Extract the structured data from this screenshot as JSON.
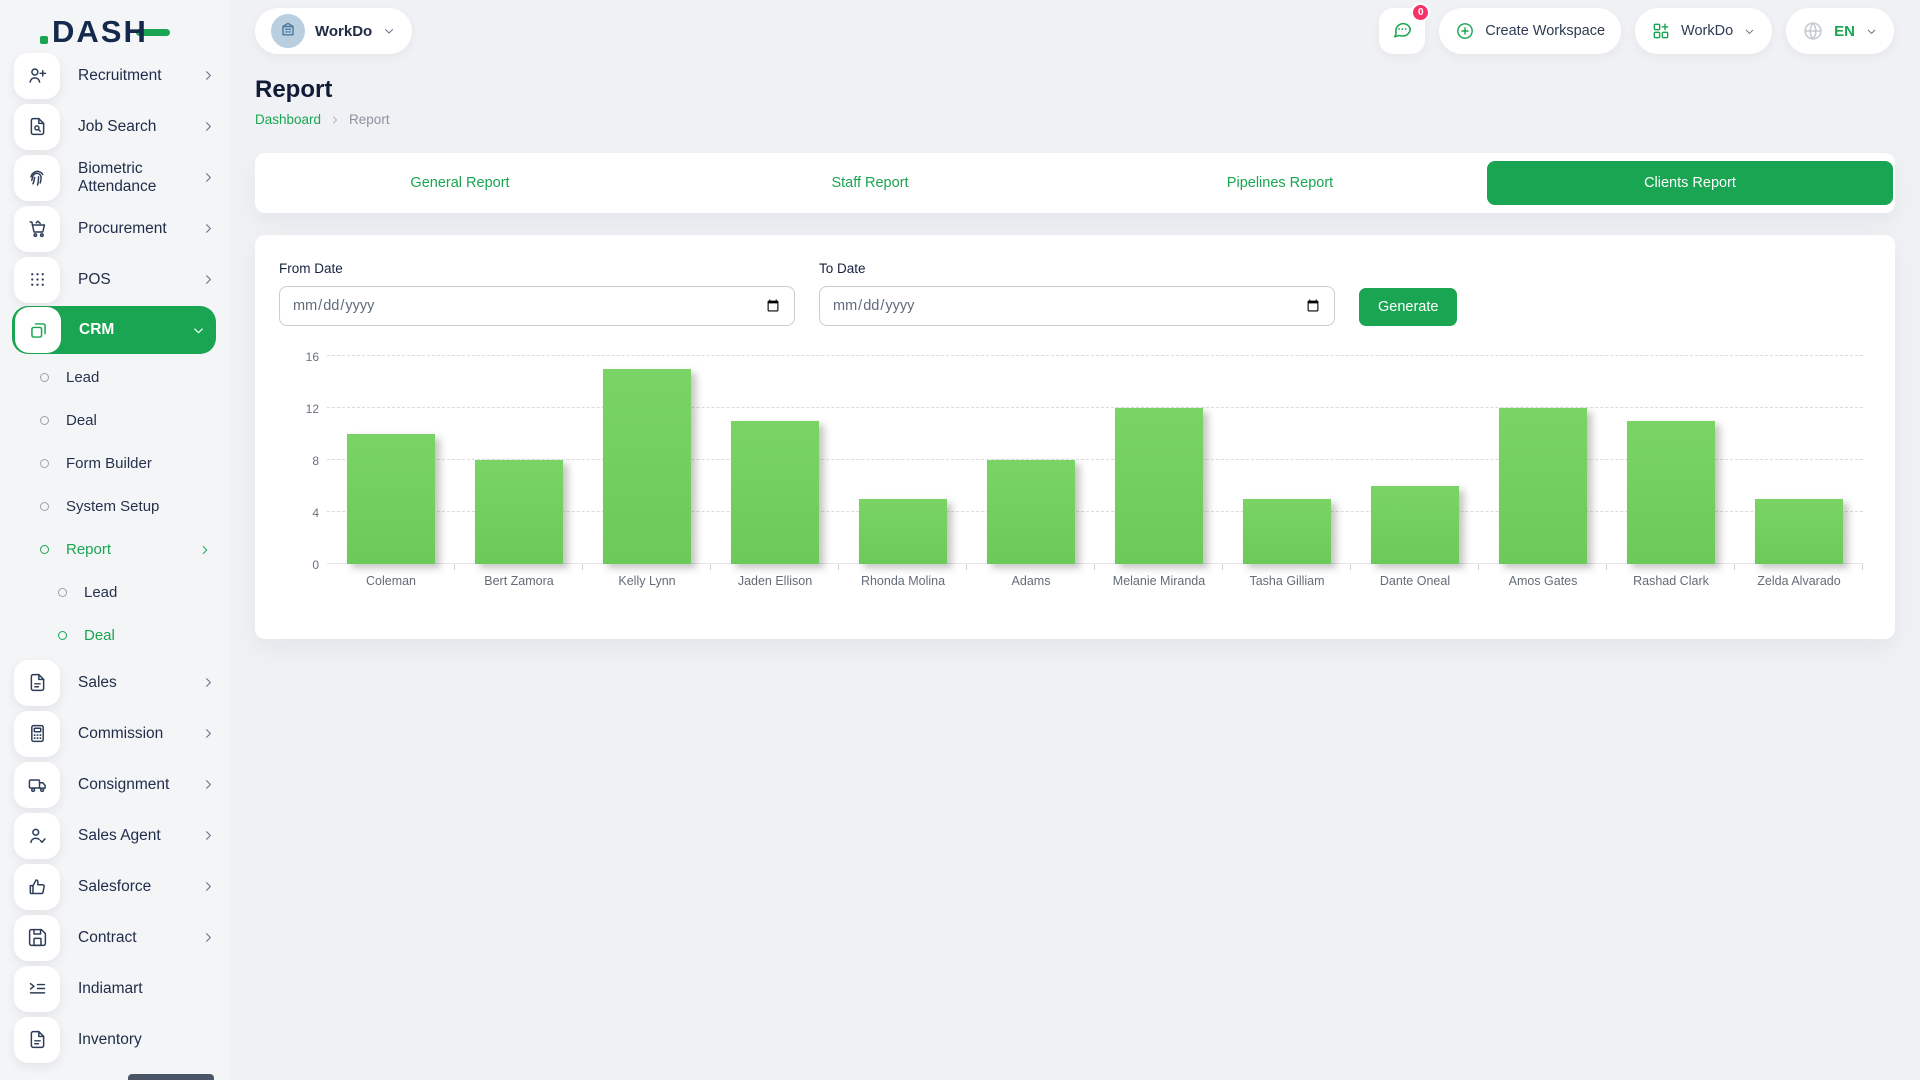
{
  "brand": {
    "logo_text": "DASH"
  },
  "header": {
    "workspace_switcher": {
      "label": "WorkDo",
      "avatar_icon": "building-icon"
    },
    "messages": {
      "badge": "0",
      "icon": "chat-icon"
    },
    "create_workspace": {
      "label": "Create Workspace",
      "icon": "plus-circle-icon"
    },
    "app_menu": {
      "label": "WorkDo",
      "icon": "grid-plus-icon"
    },
    "language": {
      "label": "EN",
      "icon": "globe-icon"
    }
  },
  "sidebar": {
    "items": [
      {
        "label": "Recruitment",
        "icon": "user-plus",
        "chevron": true
      },
      {
        "label": "Job Search",
        "icon": "file-search",
        "chevron": true
      },
      {
        "label": "Biometric Attendance",
        "icon": "fingerprint",
        "chevron": true
      },
      {
        "label": "Procurement",
        "icon": "cart",
        "chevron": true
      },
      {
        "label": "POS",
        "icon": "grid-dots",
        "chevron": true
      },
      {
        "label": "CRM",
        "icon": "copy",
        "chevron": true,
        "active": true,
        "expanded": true,
        "children": [
          {
            "label": "Lead"
          },
          {
            "label": "Deal"
          },
          {
            "label": "Form Builder"
          },
          {
            "label": "System Setup"
          },
          {
            "label": "Report",
            "active": true,
            "expanded": true,
            "children": [
              {
                "label": "Lead"
              },
              {
                "label": "Deal",
                "active": true
              }
            ]
          }
        ]
      },
      {
        "label": "Sales",
        "icon": "file",
        "chevron": true
      },
      {
        "label": "Commission",
        "icon": "calculator",
        "chevron": true
      },
      {
        "label": "Consignment",
        "icon": "truck",
        "chevron": true
      },
      {
        "label": "Sales Agent",
        "icon": "user-check",
        "chevron": true
      },
      {
        "label": "Salesforce",
        "icon": "thumbs-up",
        "chevron": true
      },
      {
        "label": "Contract",
        "icon": "save",
        "chevron": true
      },
      {
        "label": "Indiamart",
        "icon": "list-arrow",
        "chevron": false
      },
      {
        "label": "Inventory",
        "icon": "file",
        "chevron": false
      }
    ]
  },
  "page": {
    "title": "Report",
    "breadcrumb": [
      {
        "label": "Dashboard",
        "link": true
      },
      {
        "label": "Report",
        "link": false
      }
    ]
  },
  "tabs": [
    {
      "label": "General Report",
      "active": false
    },
    {
      "label": "Staff Report",
      "active": false
    },
    {
      "label": "Pipelines Report",
      "active": false
    },
    {
      "label": "Clients Report",
      "active": true
    }
  ],
  "filter": {
    "from_label": "From Date",
    "to_label": "To Date",
    "date_placeholder": "mm/dd/yyyy",
    "generate_label": "Generate"
  },
  "chart_data": {
    "type": "bar",
    "categories": [
      "Coleman",
      "Bert Zamora",
      "Kelly Lynn",
      "Jaden Ellison",
      "Rhonda Molina",
      "Adams",
      "Melanie Miranda",
      "Tasha Gilliam",
      "Dante Oneal",
      "Amos Gates",
      "Rashad Clark",
      "Zelda Alvarado"
    ],
    "values": [
      10,
      8,
      15,
      11,
      5,
      8,
      12,
      5,
      6,
      12,
      11,
      5
    ],
    "title": "",
    "xlabel": "",
    "ylabel": "",
    "ylim": [
      0,
      16
    ],
    "yticks": [
      16,
      12,
      8,
      4,
      0
    ],
    "grid": true,
    "legend": false,
    "bar_color": "#73ce5f"
  },
  "colors": {
    "accent": "#1aa552",
    "bar_green": "#73ce5f",
    "badge_pink": "#f7316a",
    "text_navy": "#22304e"
  }
}
